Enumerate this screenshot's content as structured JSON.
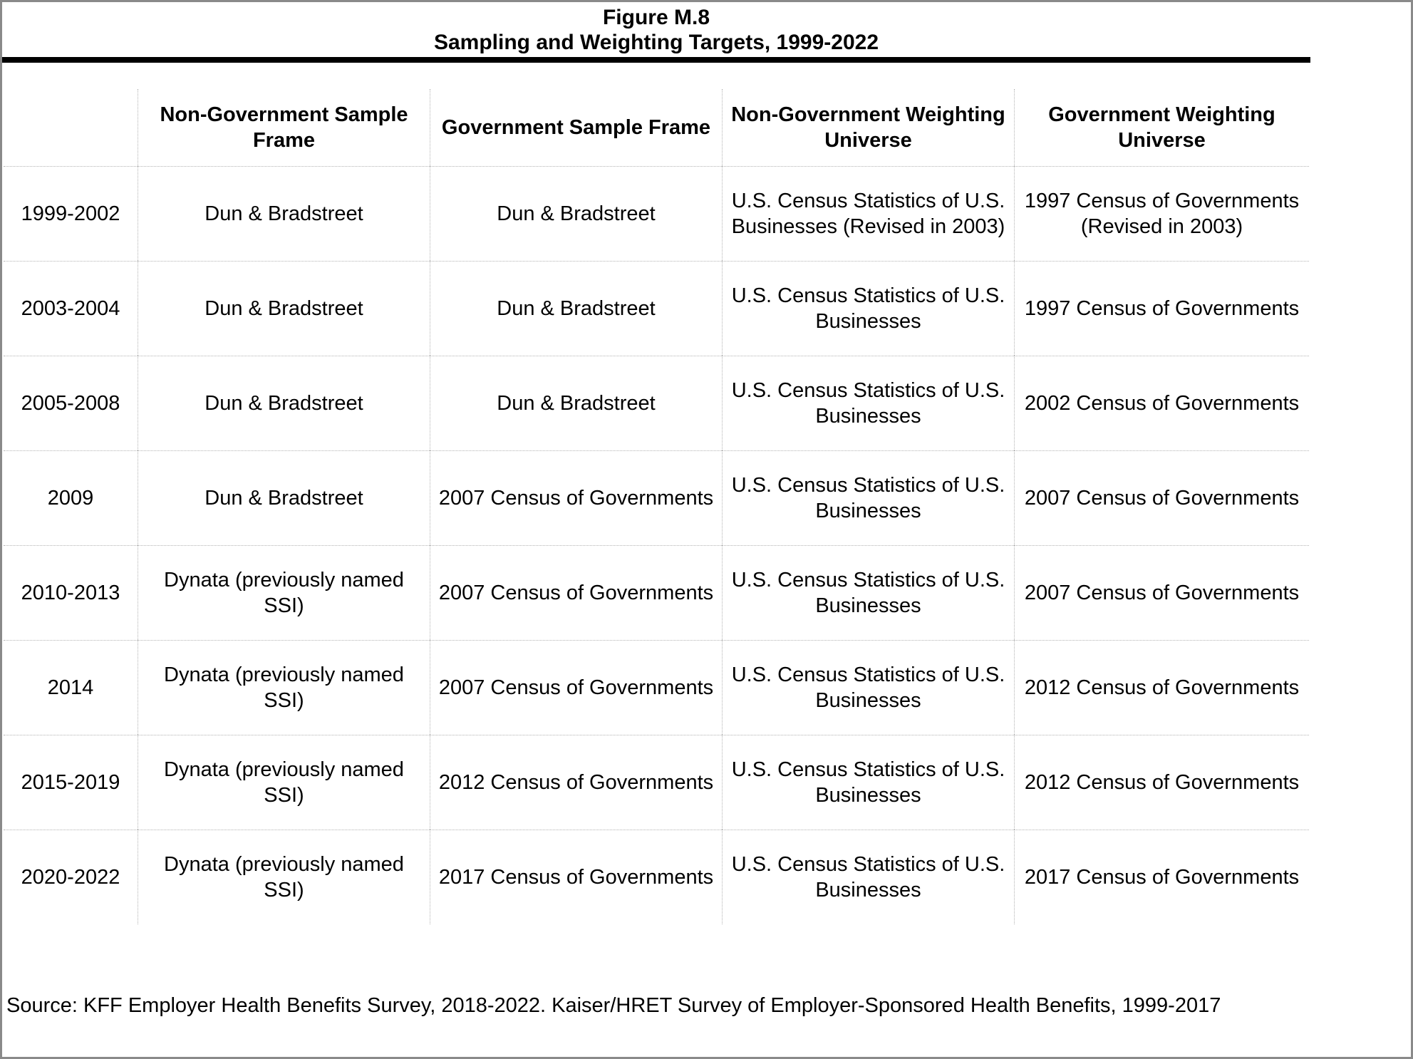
{
  "figure": {
    "title": "Figure M.8",
    "subtitle": "Sampling and Weighting Targets, 1999-2022"
  },
  "table": {
    "columns": [
      "",
      "Non-Government Sample\nFrame",
      "Government Sample Frame",
      "Non-Government Weighting\nUniverse",
      "Government Weighting\nUniverse"
    ],
    "rows": [
      {
        "cells": [
          "1999-2002",
          "Dun & Bradstreet",
          "Dun & Bradstreet",
          "U.S. Census Statistics of U.S.\nBusinesses (Revised in 2003)",
          "1997 Census of Governments\n(Revised in 2003)"
        ]
      },
      {
        "cells": [
          "2003-2004",
          "Dun & Bradstreet",
          "Dun & Bradstreet",
          "U.S. Census Statistics of U.S.\nBusinesses",
          "1997 Census of Governments"
        ]
      },
      {
        "cells": [
          "2005-2008",
          "Dun & Bradstreet",
          "Dun & Bradstreet",
          "U.S. Census Statistics of U.S.\nBusinesses",
          "2002 Census of Governments"
        ]
      },
      {
        "cells": [
          "2009",
          "Dun & Bradstreet",
          "2007 Census of Governments",
          "U.S. Census Statistics of U.S.\nBusinesses",
          "2007 Census of Governments"
        ]
      },
      {
        "cells": [
          "2010-2013",
          "Dynata (previously named\nSSI)",
          "2007 Census of Governments",
          "U.S. Census Statistics of U.S.\nBusinesses",
          "2007 Census of Governments"
        ]
      },
      {
        "cells": [
          "2014",
          "Dynata (previously named\nSSI)",
          "2007 Census of Governments",
          "U.S. Census Statistics of U.S.\nBusinesses",
          "2012 Census of Governments"
        ]
      },
      {
        "cells": [
          "2015-2019",
          "Dynata (previously named\nSSI)",
          "2012 Census of Governments",
          "U.S. Census Statistics of U.S.\nBusinesses",
          "2012 Census of Governments"
        ]
      },
      {
        "cells": [
          "2020-2022",
          "Dynata (previously named\nSSI)",
          "2017 Census of Governments",
          "U.S. Census Statistics of U.S.\nBusinesses",
          "2017 Census of Governments"
        ]
      }
    ]
  },
  "source_note": "Source: KFF Employer Health Benefits Survey, 2018-2022. Kaiser/HRET Survey of Employer-Sponsored Health Benefits, 1999-2017",
  "colors": {
    "text": "#000000",
    "title_rule": "#000000",
    "grid_line": "#b3b3b3",
    "page_frame": "#8a8a8a",
    "background": "#ffffff"
  }
}
